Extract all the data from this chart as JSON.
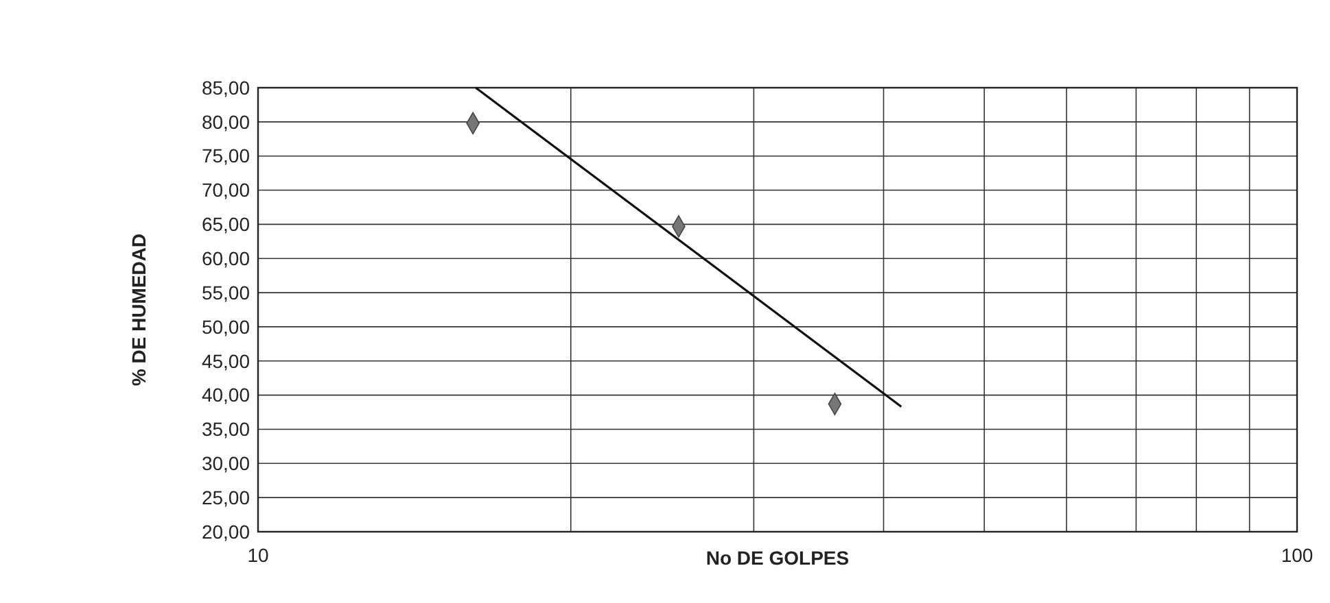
{
  "chart_data": {
    "type": "scatter",
    "xlabel": "No DE GOLPES",
    "ylabel": "% DE HUMEDAD",
    "log": "x",
    "grid": true,
    "marker": "diamond",
    "xlim": [
      10,
      100
    ],
    "ylim": [
      20,
      85
    ],
    "xticks": [
      10,
      {
        "value": 20,
        "label": null
      },
      {
        "value": 30,
        "label": null
      },
      {
        "value": 40,
        "label": null
      },
      {
        "value": 50,
        "label": null
      },
      {
        "value": 60,
        "label": null
      },
      {
        "value": 70,
        "label": null
      },
      {
        "value": 80,
        "label": null
      },
      {
        "value": 90,
        "label": null
      },
      100
    ],
    "yticks": [
      {
        "value": 20,
        "label": "20,00"
      },
      {
        "value": 25,
        "label": "25,00"
      },
      {
        "value": 30,
        "label": "30,00"
      },
      {
        "value": 35,
        "label": "35,00"
      },
      {
        "value": 40,
        "label": "40,00"
      },
      {
        "value": 45,
        "label": "45,00"
      },
      {
        "value": 50,
        "label": "50,00"
      },
      {
        "value": 55,
        "label": "55,00"
      },
      {
        "value": 60,
        "label": "60,00"
      },
      {
        "value": 65,
        "label": "65,00"
      },
      {
        "value": 70,
        "label": "70,00"
      },
      {
        "value": 75,
        "label": "75,00"
      },
      {
        "value": 80,
        "label": "80,00"
      },
      {
        "value": 85,
        "label": "85,00"
      }
    ],
    "series": [
      {
        "color": "#777777",
        "x": [
          16.1,
          25.4,
          35.9
        ],
        "values": [
          79.8,
          64.7,
          38.7
        ]
      },
      {
        "type": "line",
        "color": "#111111",
        "marker": "none",
        "x": [
          16.2,
          41.6
        ],
        "values": [
          85,
          38.3
        ]
      }
    ]
  }
}
